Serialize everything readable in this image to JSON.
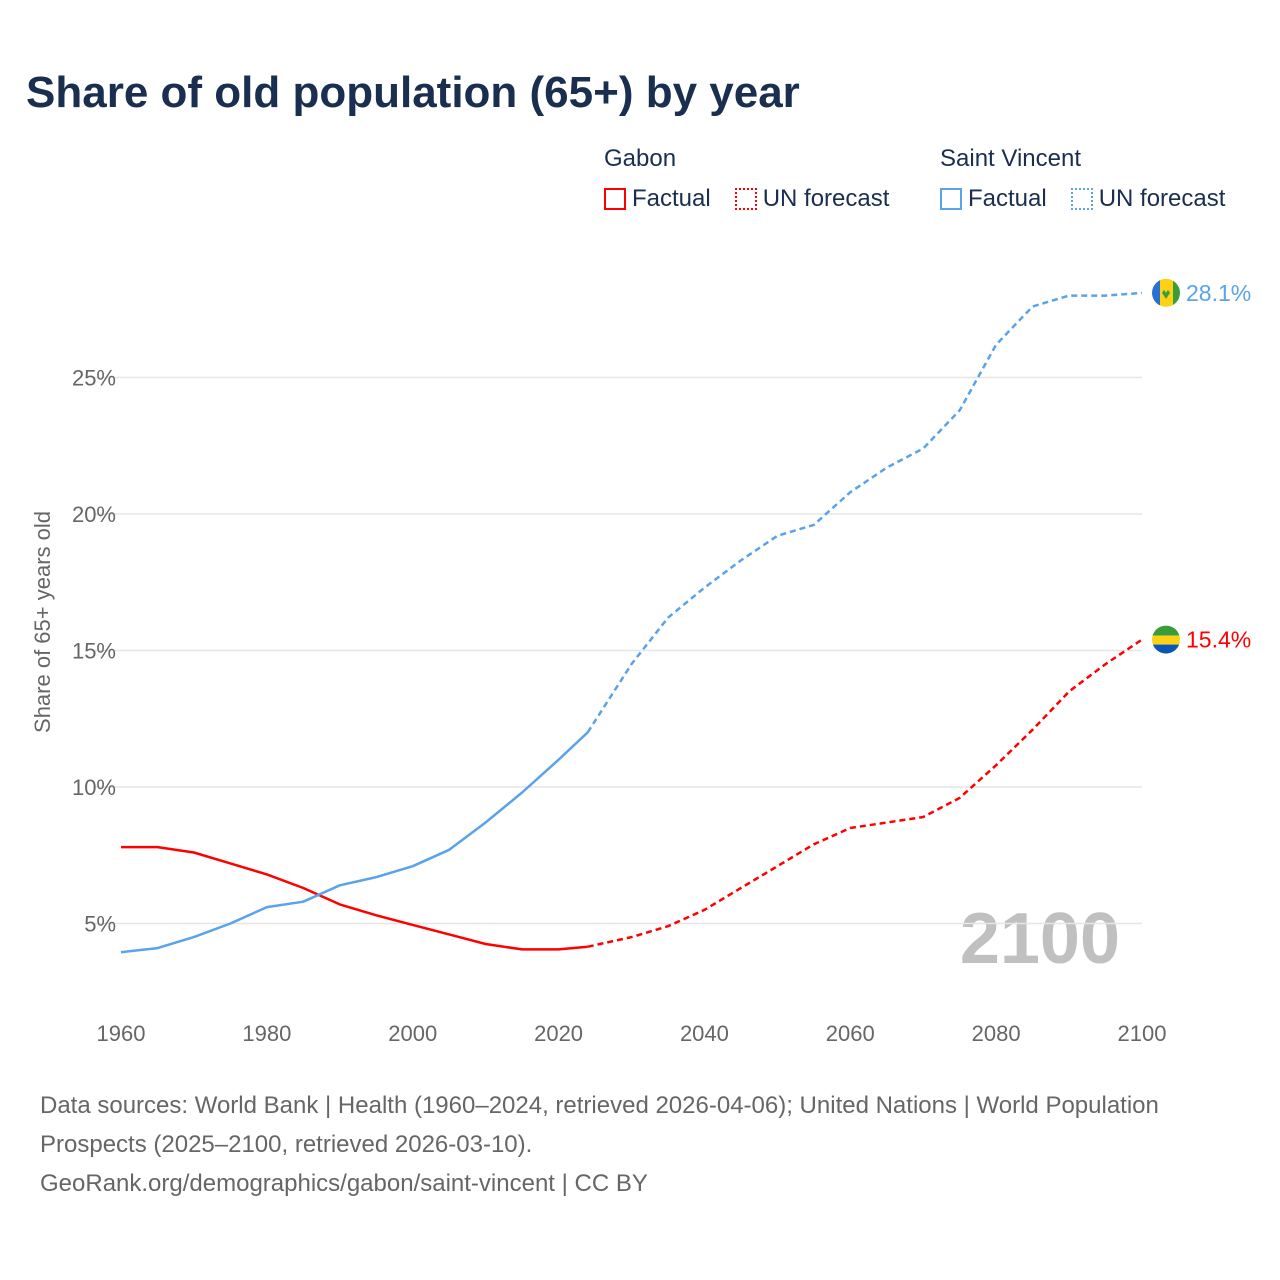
{
  "title": "Share of old population (65+) by year",
  "legend": {
    "groups": [
      {
        "name": "Gabon",
        "color": "#ff0000",
        "factual": "Factual",
        "forecast": "UN forecast"
      },
      {
        "name": "Saint Vincent",
        "color": "#5aa2ea",
        "factual": "Factual",
        "forecast": "UN forecast"
      }
    ]
  },
  "year_watermark": "2100",
  "footer": {
    "sources": "Data sources: World Bank | Health (1960–2024, retrieved 2026-04-06); United Nations | World Population Prospects (2025–2100, retrieved 2026-03-10).",
    "link": "GeoRank.org/demographics/gabon/saint-vincent | CC BY"
  },
  "chart_data": {
    "type": "line",
    "title": "Share of old population (65+) by year",
    "xlabel": "",
    "ylabel": "Share of 65+ years old",
    "xlim": [
      1960,
      2100
    ],
    "ylim": [
      0,
      28.5
    ],
    "x_ticks": [
      "1960",
      "1980",
      "2000",
      "2020",
      "2040",
      "2060",
      "2080",
      "2100"
    ],
    "y_ticks": [
      {
        "v": 5,
        "label": "5%"
      },
      {
        "v": 10,
        "label": "10%"
      },
      {
        "v": 15,
        "label": "15%"
      },
      {
        "v": 20,
        "label": "20%"
      },
      {
        "v": 25,
        "label": "25%"
      }
    ],
    "grid": true,
    "factual_end_year": 2024,
    "series": [
      {
        "name": "Gabon",
        "color": "#ff0000",
        "end_label": "15.4%",
        "x": [
          1960,
          1965,
          1970,
          1975,
          1980,
          1985,
          1990,
          1995,
          2000,
          2005,
          2010,
          2015,
          2020,
          2024,
          2030,
          2035,
          2040,
          2045,
          2050,
          2055,
          2060,
          2065,
          2070,
          2075,
          2080,
          2085,
          2090,
          2095,
          2100
        ],
        "values": [
          7.8,
          7.8,
          7.6,
          7.2,
          6.8,
          6.3,
          5.7,
          5.3,
          4.95,
          4.6,
          4.25,
          4.05,
          4.05,
          4.15,
          4.5,
          4.9,
          5.5,
          6.3,
          7.1,
          7.9,
          8.5,
          8.7,
          8.9,
          9.6,
          10.8,
          12.1,
          13.5,
          14.5,
          15.4
        ]
      },
      {
        "name": "Saint Vincent",
        "color": "#5aa2ea",
        "end_label": "28.1%",
        "x": [
          1960,
          1965,
          1970,
          1975,
          1980,
          1985,
          1990,
          1995,
          2000,
          2005,
          2010,
          2015,
          2020,
          2024,
          2030,
          2035,
          2040,
          2045,
          2050,
          2055,
          2060,
          2065,
          2070,
          2075,
          2080,
          2085,
          2090,
          2095,
          2100
        ],
        "values": [
          3.95,
          4.1,
          4.5,
          5.0,
          5.6,
          5.8,
          6.4,
          6.7,
          7.1,
          7.7,
          8.7,
          9.8,
          11.0,
          12.0,
          14.5,
          16.2,
          17.3,
          18.3,
          19.2,
          19.6,
          20.8,
          21.7,
          22.4,
          23.8,
          26.2,
          27.6,
          28.0,
          28.0,
          28.1
        ]
      }
    ]
  }
}
